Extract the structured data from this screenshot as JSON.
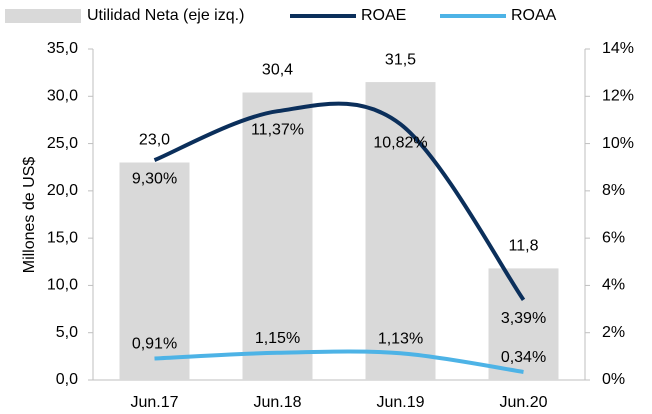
{
  "chart_data": {
    "type": "bar",
    "categories": [
      "Jun.17",
      "Jun.18",
      "Jun.19",
      "Jun.20"
    ],
    "y_label": "Millones de US$",
    "series": [
      {
        "name": "Utilidad Neta (eje izq.)",
        "type": "bar",
        "color": "#d9d9d9",
        "values": [
          23.0,
          30.4,
          31.5,
          11.8
        ],
        "value_labels": [
          "23,0",
          "30,4",
          "31,5",
          "11,8"
        ]
      },
      {
        "name": "ROAE",
        "type": "line",
        "axis": "y2",
        "color": "#0b2f5b",
        "values": [
          9.3,
          11.37,
          10.82,
          3.39
        ],
        "value_labels": [
          "9,30%",
          "11,37%",
          "10,82%",
          "3,39%"
        ]
      },
      {
        "name": "ROAA",
        "type": "line",
        "axis": "y2",
        "color": "#4db3e6",
        "values": [
          0.91,
          1.15,
          1.13,
          0.34
        ],
        "value_labels": [
          "0,91%",
          "1,15%",
          "1,13%",
          "0,34%"
        ]
      }
    ],
    "ylim": [
      0,
      35
    ],
    "yticks": [
      {
        "value": 0,
        "label": "0,0"
      },
      {
        "value": 5,
        "label": "5,0"
      },
      {
        "value": 10,
        "label": "10,0"
      },
      {
        "value": 15,
        "label": "15,0"
      },
      {
        "value": 20,
        "label": "20,0"
      },
      {
        "value": 25,
        "label": "25,0"
      },
      {
        "value": 30,
        "label": "30,0"
      },
      {
        "value": 35,
        "label": "35,0"
      }
    ],
    "y2lim": [
      0,
      14
    ],
    "y2ticks": [
      {
        "value": 0,
        "label": "0%"
      },
      {
        "value": 2,
        "label": "2%"
      },
      {
        "value": 4,
        "label": "4%"
      },
      {
        "value": 6,
        "label": "6%"
      },
      {
        "value": 8,
        "label": "8%"
      },
      {
        "value": 10,
        "label": "10%"
      },
      {
        "value": 12,
        "label": "12%"
      },
      {
        "value": 14,
        "label": "14%"
      }
    ],
    "legend": "top"
  }
}
